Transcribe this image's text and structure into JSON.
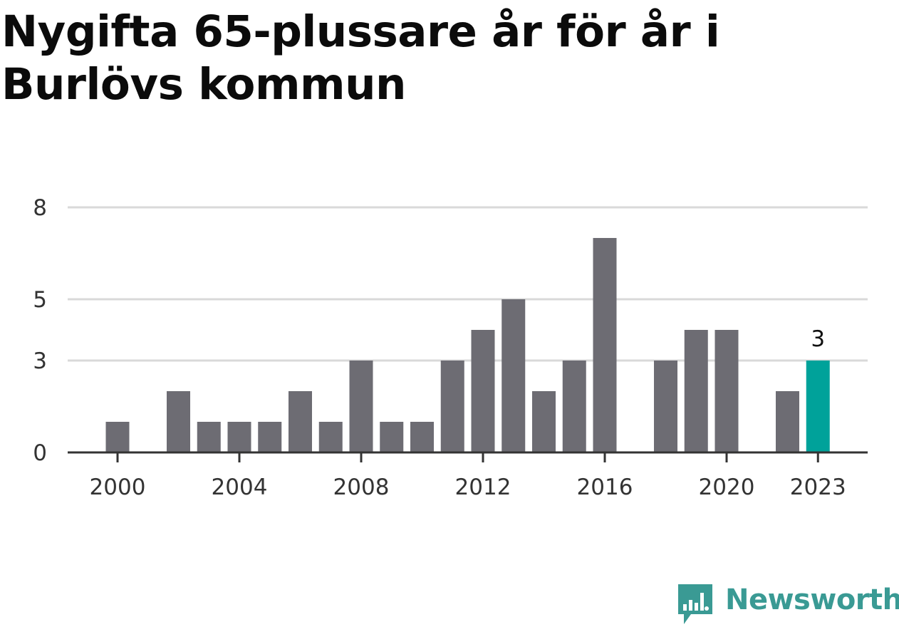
{
  "colors": {
    "bar": "#6d6c73",
    "highlight": "#00a29a",
    "grid": "#d9d9d9",
    "axis": "#333333",
    "brand": "#3a9a94"
  },
  "brand": {
    "name": "Newsworthy",
    "icon": "newsworthy-logo-icon"
  },
  "chart_data": {
    "type": "bar",
    "title": "Nygifta 65-plussare år för år i Burlövs kommun",
    "xlabel": "",
    "ylabel": "",
    "categories": [
      2000,
      2001,
      2002,
      2003,
      2004,
      2005,
      2006,
      2007,
      2008,
      2009,
      2010,
      2011,
      2012,
      2013,
      2014,
      2015,
      2016,
      2017,
      2018,
      2019,
      2020,
      2021,
      2022,
      2023
    ],
    "values": [
      1,
      0,
      2,
      1,
      1,
      1,
      2,
      1,
      3,
      1,
      1,
      3,
      4,
      5,
      2,
      3,
      7,
      0,
      3,
      4,
      4,
      0,
      2,
      3
    ],
    "ylim": [
      0,
      8
    ],
    "yticks": [
      {
        "value": 0,
        "label": "0"
      },
      {
        "value": 3,
        "label": "3"
      },
      {
        "value": 5,
        "label": "5"
      },
      {
        "value": 8,
        "label": "8"
      }
    ],
    "xticks": [
      {
        "value": 2000,
        "label": "2000"
      },
      {
        "value": 2004,
        "label": "2004"
      },
      {
        "value": 2008,
        "label": "2008"
      },
      {
        "value": 2012,
        "label": "2012"
      },
      {
        "value": 2016,
        "label": "2016"
      },
      {
        "value": 2020,
        "label": "2020"
      },
      {
        "value": 2023,
        "label": "2023"
      }
    ],
    "highlight": {
      "category": 2023,
      "label": "3"
    },
    "grid": true,
    "legend": "none"
  }
}
